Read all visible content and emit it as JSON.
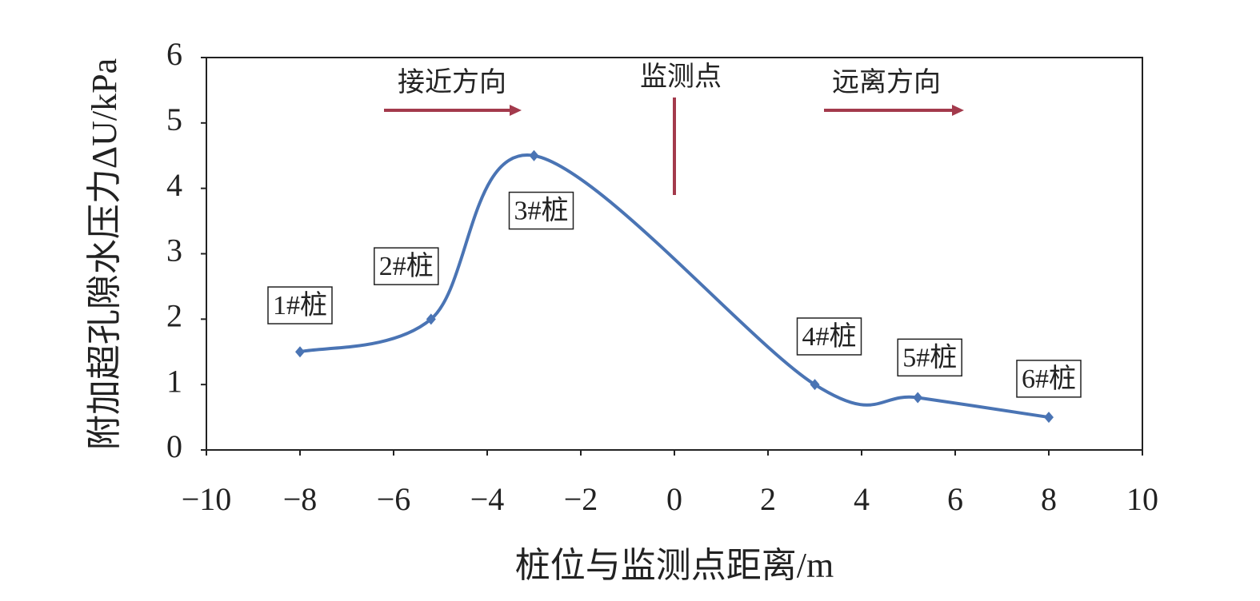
{
  "chart_data": {
    "type": "line",
    "xlabel": "桩位与监测点距离/m",
    "ylabel": "附加超孔隙水压力ΔU/kPa",
    "x": [
      -8,
      -5.2,
      -3.0,
      3.0,
      5.2,
      8.0
    ],
    "series": [
      {
        "color": "#4a74b4",
        "values": [
          1.5,
          2.0,
          4.5,
          1.0,
          0.8,
          0.5
        ]
      }
    ],
    "point_labels": [
      "1#桩",
      "2#桩",
      "3#桩",
      "4#桩",
      "5#桩",
      "6#桩"
    ],
    "annotations": [
      "接近方向",
      "监测点",
      "远离方向"
    ],
    "xlim": [
      -10,
      10
    ],
    "xticks": [
      {
        "value": -10,
        "label": "−10"
      },
      {
        "value": -8,
        "label": "−8"
      },
      {
        "value": -6,
        "label": "−6"
      },
      {
        "value": -4,
        "label": "−4"
      },
      {
        "value": -2,
        "label": "−2"
      },
      0,
      2,
      4,
      6,
      8,
      10
    ],
    "ylim": [
      0,
      6
    ],
    "yticks": [
      0,
      1,
      2,
      3,
      4,
      5,
      6
    ],
    "grid": false
  }
}
